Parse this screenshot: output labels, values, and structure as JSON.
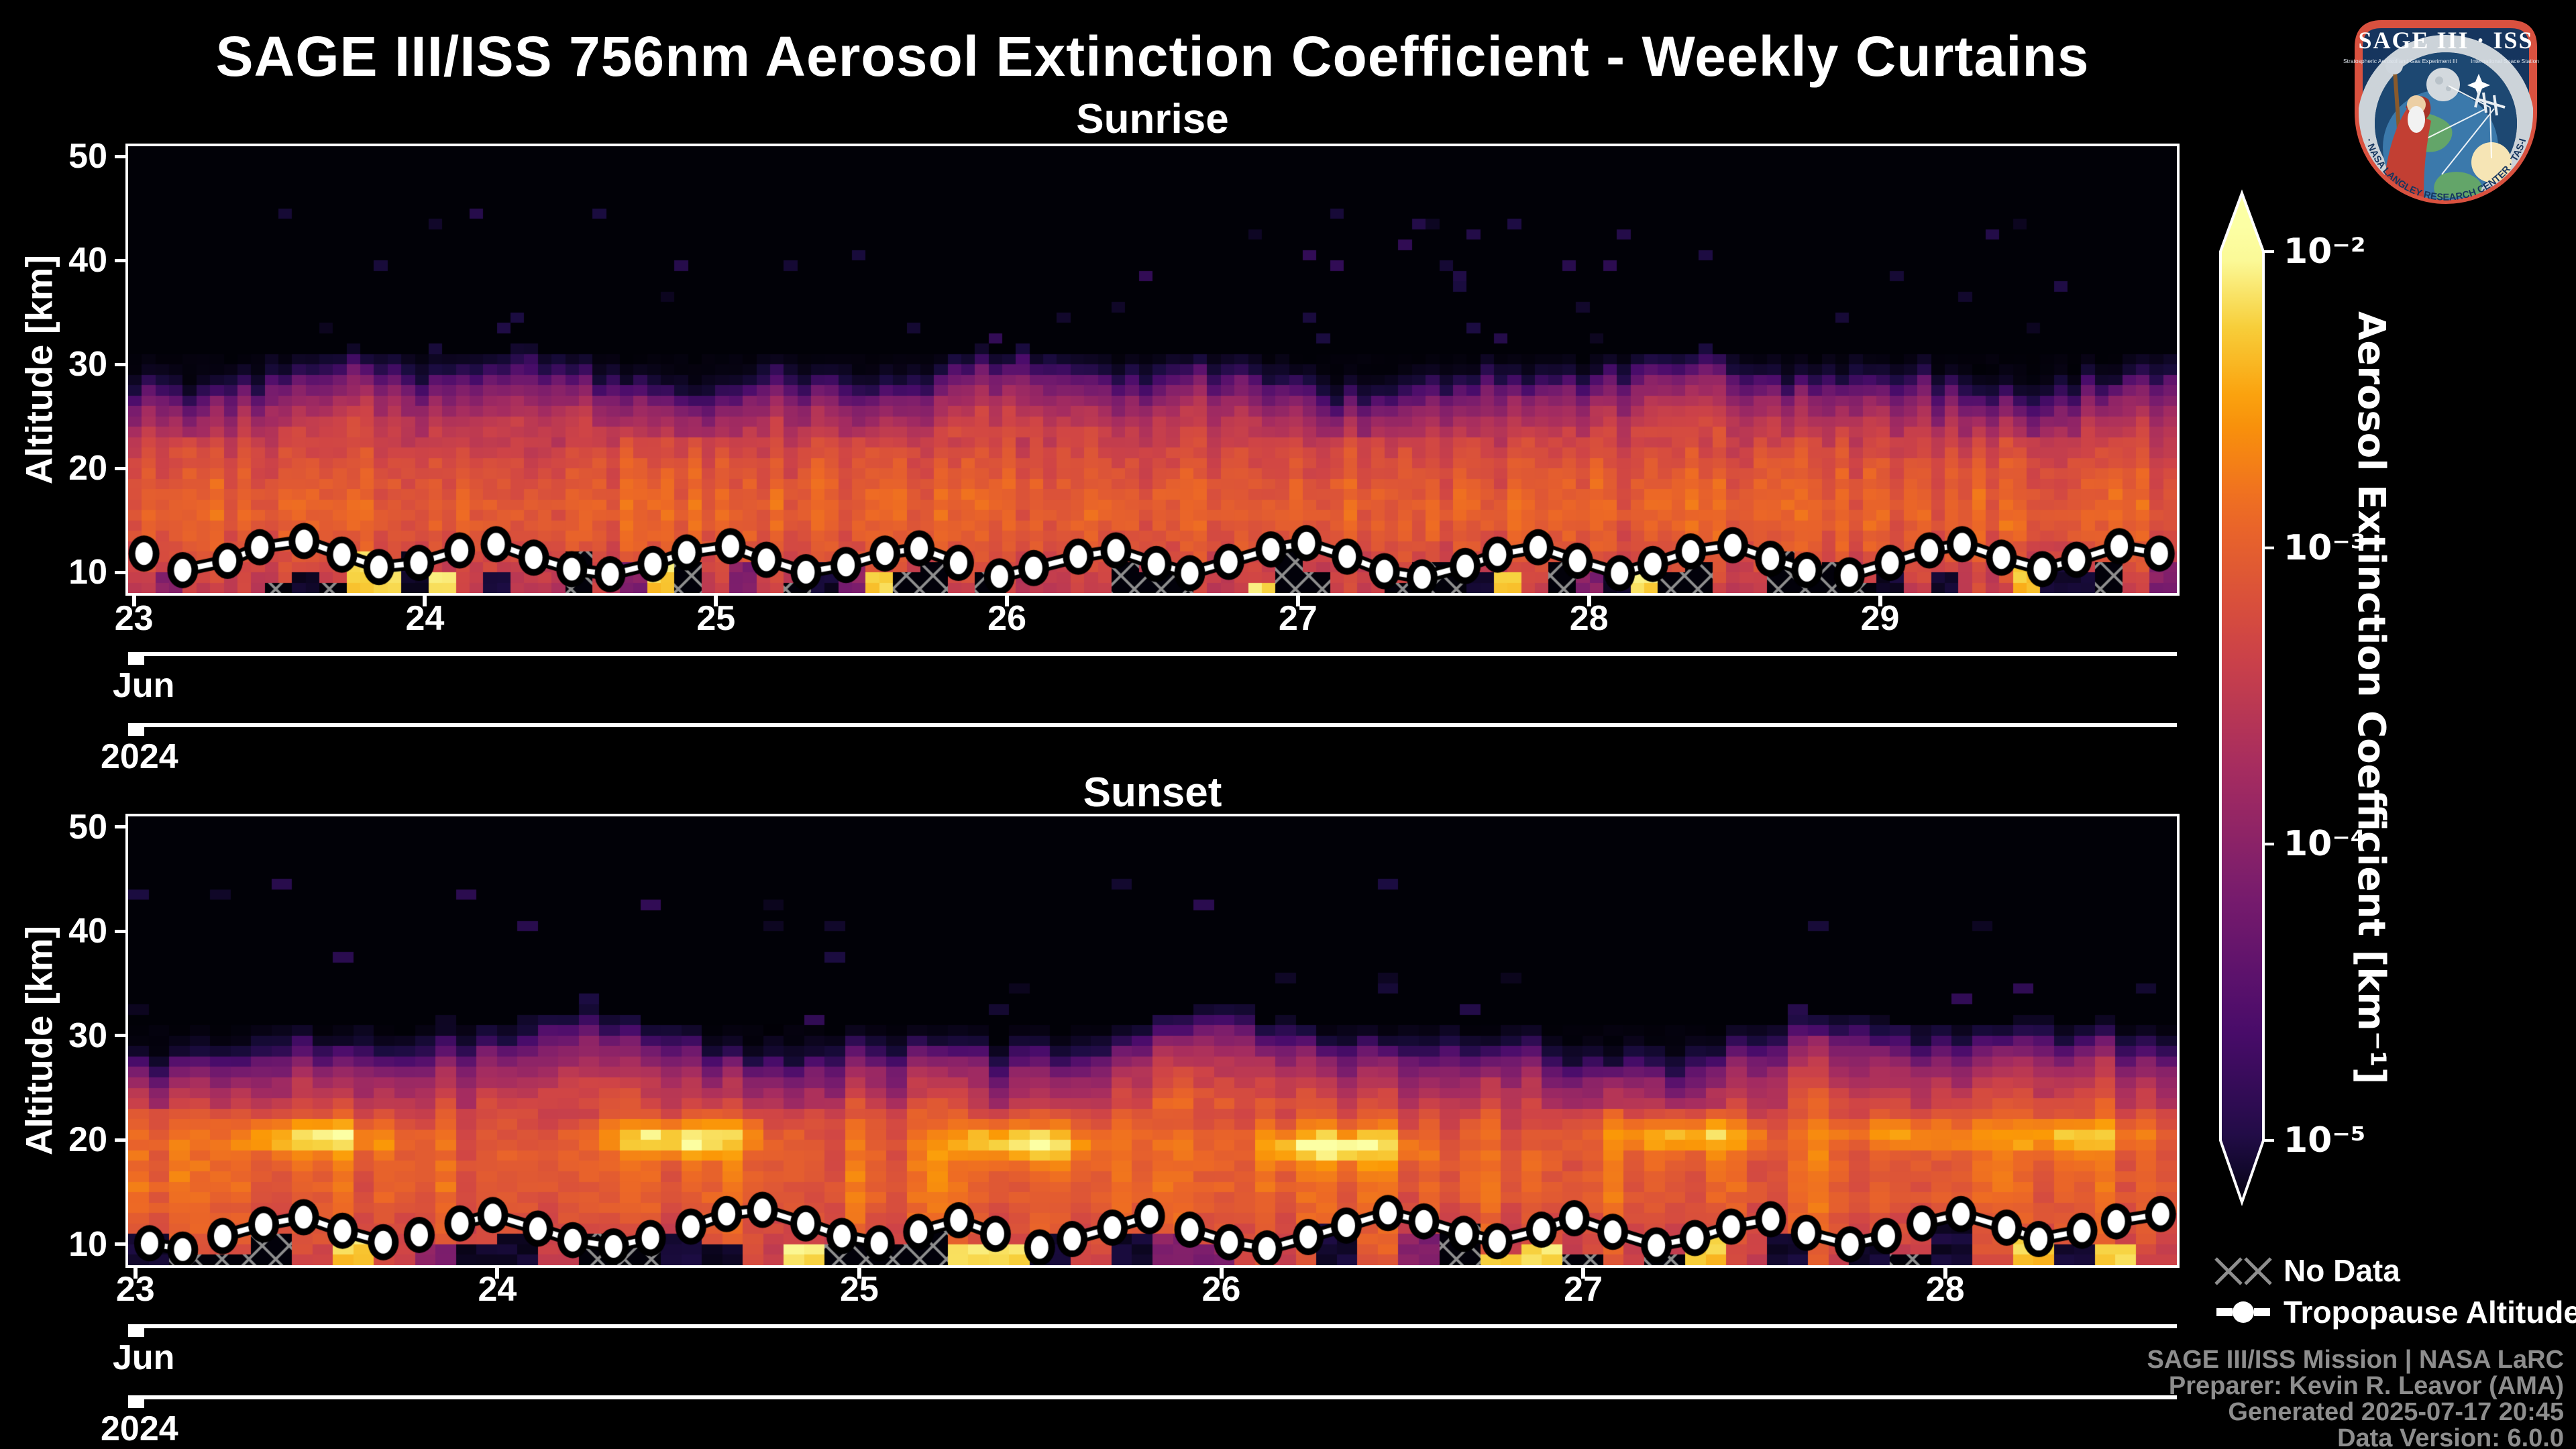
{
  "title": "SAGE III/ISS 756nm Aerosol Extinction Coefficient - Weekly Curtains",
  "y_axis": {
    "label": "Altitude [km]",
    "ticks": [
      50,
      40,
      30,
      20,
      10
    ]
  },
  "colorbar": {
    "label": "Aerosol Extinction Coefficient [km⁻¹]",
    "ticks": [
      "10⁻²",
      "10⁻³",
      "10⁻⁴",
      "10⁻⁵"
    ],
    "scale": "log",
    "range": [
      1e-05,
      0.01
    ],
    "extend": "both",
    "colormap": [
      [
        0.0,
        "#000004"
      ],
      [
        0.13,
        "#1b0c41"
      ],
      [
        0.25,
        "#4a0c6b"
      ],
      [
        0.38,
        "#781c6d"
      ],
      [
        0.5,
        "#a52c60"
      ],
      [
        0.62,
        "#cf4446"
      ],
      [
        0.75,
        "#ed6925"
      ],
      [
        0.85,
        "#fb9a06"
      ],
      [
        0.93,
        "#f7d03c"
      ],
      [
        1.0,
        "#fcffa4"
      ]
    ]
  },
  "legend": {
    "no_data": "No Data",
    "tropopause": "Tropopause Altitude",
    "hatch_color": "#8e8e8e"
  },
  "attribution": [
    "SAGE III/ISS Mission | NASA LaRC",
    "Preparer: Kevin R. Leavor (AMA)",
    "Generated 2025-07-17 20:45",
    "Data Version: 6.0.0"
  ],
  "logo": {
    "title": "SAGE III · ISS",
    "subtitle_left": "Stratospheric Aerosol and Gas Experiment III",
    "subtitle_right": "International Space Station",
    "ring_text": "BALL · NASA LANGLEY RESEARCH CENTER · TAS-I · ESA"
  },
  "chart_data": [
    {
      "type": "heatmap",
      "title": "Sunrise",
      "month": "Jun",
      "year": "2024",
      "x_range_days": [
        22.98,
        30.02
      ],
      "x_tick_days": [
        23,
        24,
        25,
        26,
        27,
        28,
        29
      ],
      "y_range_km": [
        8,
        51
      ],
      "y_ticks_km": [
        10,
        20,
        30,
        40,
        50
      ],
      "value_mapping": "v = (log10(extinction)+5.5)/3.5",
      "columns": 150,
      "rows": 43,
      "seed": 20240623,
      "tint": 0.05,
      "speckle_prob": 0.022,
      "gap_prob": 0.12,
      "profile_keypoints": [
        [
          8,
          0.58
        ],
        [
          9,
          0.6
        ],
        [
          10,
          0.62
        ],
        [
          12,
          0.66
        ],
        [
          14,
          0.7
        ],
        [
          16,
          0.72
        ],
        [
          18,
          0.7
        ],
        [
          20,
          0.67
        ],
        [
          22,
          0.63
        ],
        [
          24,
          0.56
        ],
        [
          25.5,
          0.48
        ],
        [
          26.5,
          0.42
        ],
        [
          27.5,
          0.34
        ],
        [
          28.5,
          0.2
        ],
        [
          29.3,
          0.1
        ],
        [
          30.2,
          0.04
        ],
        [
          31,
          0.015
        ],
        [
          51,
          0.01
        ]
      ],
      "layer_top": {
        "mean": 28.2,
        "amp1": 1.1,
        "amp2": 0.8,
        "f1": 2.9,
        "f2": 8.1
      },
      "hotspots": [],
      "bottom_features": {
        "hatch": 0.3,
        "cloud": 0.12,
        "dark": 0.14,
        "magenta": 0.07
      },
      "tropopause_km": [
        11.8,
        10.2,
        11.1,
        12.4,
        13.0,
        11.7,
        10.5,
        10.9,
        12.1,
        12.7,
        11.4,
        10.3,
        9.8,
        10.8,
        11.9,
        12.5,
        11.2,
        10.0,
        10.7,
        11.8,
        12.3,
        10.9,
        9.6,
        10.4,
        11.5,
        12.1,
        10.8,
        9.9,
        11.0,
        12.2,
        12.8,
        11.5,
        10.1,
        9.5,
        10.6,
        11.7,
        12.4,
        11.1,
        9.9,
        10.8,
        12.0,
        12.6,
        11.3,
        10.2,
        9.7,
        10.9,
        12.1,
        12.7,
        11.4,
        10.3,
        11.2,
        12.5,
        11.8
      ]
    },
    {
      "type": "heatmap",
      "title": "Sunset",
      "month": "Jun",
      "year": "2024",
      "x_range_days": [
        22.98,
        28.64
      ],
      "x_tick_days": [
        23,
        24,
        25,
        26,
        27,
        28
      ],
      "y_range_km": [
        8,
        51
      ],
      "y_ticks_km": [
        10,
        20,
        30,
        40,
        50
      ],
      "value_mapping": "v = (log10(extinction)+5.5)/3.5",
      "columns": 100,
      "rows": 43,
      "seed": 777412,
      "tint": 0.07,
      "speckle_prob": 0.02,
      "gap_prob": 0.12,
      "profile_keypoints": [
        [
          8,
          0.62
        ],
        [
          9,
          0.64
        ],
        [
          10,
          0.66
        ],
        [
          12,
          0.68
        ],
        [
          14,
          0.71
        ],
        [
          16,
          0.73
        ],
        [
          18,
          0.72
        ],
        [
          20,
          0.71
        ],
        [
          22,
          0.66
        ],
        [
          24,
          0.59
        ],
        [
          26,
          0.5
        ],
        [
          27.5,
          0.4
        ],
        [
          28.6,
          0.26
        ],
        [
          29.6,
          0.12
        ],
        [
          30.5,
          0.05
        ],
        [
          31.3,
          0.015
        ],
        [
          51,
          0.01
        ]
      ],
      "layer_top": {
        "mean": 29.2,
        "amp1": 1.3,
        "amp2": 0.9,
        "f1": 3.3,
        "f2": 7.4
      },
      "hotspots": [
        [
          23.5,
          20.3,
          0.3
        ],
        [
          24.5,
          20.2,
          0.32
        ],
        [
          25.45,
          19.7,
          0.3
        ],
        [
          26.32,
          19.4,
          0.3
        ],
        [
          27.3,
          20.4,
          0.26
        ],
        [
          27.9,
          20.6,
          0.18
        ],
        [
          28.35,
          20.5,
          0.22
        ]
      ],
      "bottom_features": {
        "hatch": 0.34,
        "cloud": 0.13,
        "dark": 0.12,
        "magenta": 0.08
      },
      "tropopause_km": [
        10.1,
        9.5,
        10.8,
        11.9,
        12.6,
        11.3,
        10.2,
        10.9,
        12.0,
        12.8,
        11.5,
        10.4,
        9.8,
        10.6,
        11.7,
        12.9,
        13.3,
        12.0,
        10.8,
        10.1,
        11.2,
        12.3,
        11.0,
        9.7,
        10.5,
        11.6,
        12.7,
        11.4,
        10.2,
        9.6,
        10.7,
        11.8,
        13.0,
        12.2,
        11.0,
        10.3,
        11.4,
        12.5,
        11.2,
        9.9,
        10.6,
        11.7,
        12.4,
        11.1,
        10.0,
        10.8,
        12.0,
        12.9,
        11.6,
        10.5,
        11.3,
        12.2,
        12.9
      ]
    }
  ]
}
